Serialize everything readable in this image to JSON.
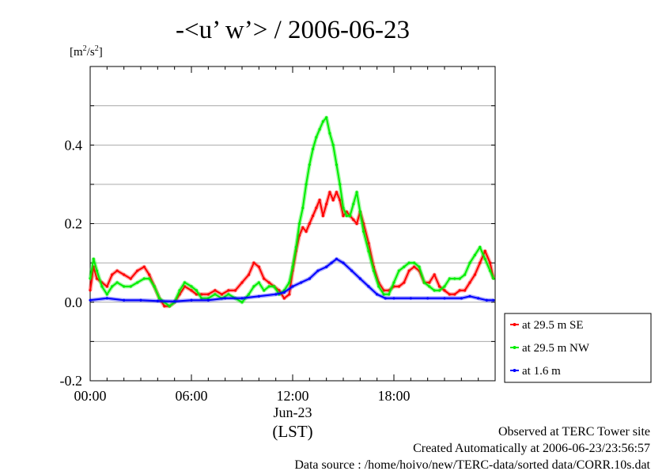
{
  "chart_data": {
    "type": "line",
    "title": "-<u’ w’> / 2006-06-23",
    "y_unit_parts": {
      "open": "[m",
      "sup1": "2",
      "mid": "/s",
      "sup2": "2",
      "close": "]"
    },
    "xlim": [
      0,
      24
    ],
    "ylim": [
      -0.2,
      0.6
    ],
    "x_ticks": [
      {
        "value": 0,
        "label": "00:00"
      },
      {
        "value": 6,
        "label": "06:00"
      },
      {
        "value": 12,
        "label": "12:00"
      },
      {
        "value": 18,
        "label": "18:00"
      }
    ],
    "x_date_label": "Jun-23",
    "x_axis_label": "(LST)",
    "y_ticks": [
      {
        "value": -0.2,
        "label": "-0.2"
      },
      {
        "value": 0.0,
        "label": "0.0"
      },
      {
        "value": 0.2,
        "label": "0.2"
      },
      {
        "value": 0.4,
        "label": "0.4"
      }
    ],
    "grid": true,
    "legend_position": "right-bottom-outside",
    "series": [
      {
        "name": "at 29.5 m SE",
        "color": "#ff0000",
        "x": [
          0,
          0.2,
          0.4,
          0.7,
          1.0,
          1.3,
          1.6,
          2.0,
          2.4,
          2.8,
          3.2,
          3.5,
          3.8,
          4.1,
          4.4,
          4.7,
          5.0,
          5.3,
          5.6,
          6.0,
          6.3,
          6.6,
          7.0,
          7.4,
          7.8,
          8.2,
          8.6,
          9.0,
          9.4,
          9.7,
          10.0,
          10.3,
          10.6,
          10.9,
          11.2,
          11.5,
          11.8,
          12.0,
          12.2,
          12.4,
          12.6,
          12.8,
          13.0,
          13.2,
          13.4,
          13.6,
          13.8,
          14.0,
          14.2,
          14.4,
          14.6,
          14.8,
          15.0,
          15.2,
          15.4,
          15.6,
          15.8,
          16.0,
          16.2,
          16.5,
          16.8,
          17.1,
          17.4,
          17.7,
          18.0,
          18.3,
          18.6,
          18.9,
          19.2,
          19.5,
          19.8,
          20.1,
          20.4,
          20.7,
          21.0,
          21.3,
          21.6,
          21.9,
          22.2,
          22.5,
          22.8,
          23.1,
          23.4,
          23.7,
          23.9
        ],
        "y": [
          0.03,
          0.09,
          0.06,
          0.05,
          0.04,
          0.07,
          0.08,
          0.07,
          0.06,
          0.08,
          0.09,
          0.07,
          0.04,
          0.01,
          -0.01,
          -0.01,
          0.0,
          0.02,
          0.04,
          0.03,
          0.02,
          0.02,
          0.02,
          0.03,
          0.02,
          0.03,
          0.03,
          0.05,
          0.07,
          0.1,
          0.09,
          0.06,
          0.05,
          0.04,
          0.03,
          0.01,
          0.02,
          0.08,
          0.13,
          0.17,
          0.19,
          0.18,
          0.2,
          0.22,
          0.24,
          0.26,
          0.22,
          0.25,
          0.28,
          0.26,
          0.28,
          0.26,
          0.22,
          0.23,
          0.22,
          0.21,
          0.2,
          0.23,
          0.2,
          0.15,
          0.09,
          0.05,
          0.03,
          0.03,
          0.04,
          0.04,
          0.05,
          0.08,
          0.09,
          0.08,
          0.05,
          0.05,
          0.07,
          0.04,
          0.03,
          0.02,
          0.02,
          0.03,
          0.03,
          0.05,
          0.07,
          0.1,
          0.13,
          0.1,
          0.06
        ]
      },
      {
        "name": "at 29.5 m NW",
        "color": "#00ee00",
        "x": [
          0,
          0.2,
          0.4,
          0.7,
          1.0,
          1.3,
          1.6,
          2.0,
          2.4,
          2.8,
          3.2,
          3.5,
          3.8,
          4.1,
          4.4,
          4.7,
          5.0,
          5.3,
          5.6,
          6.0,
          6.3,
          6.6,
          7.0,
          7.4,
          7.8,
          8.2,
          8.6,
          9.0,
          9.4,
          9.7,
          10.0,
          10.3,
          10.6,
          10.9,
          11.2,
          11.5,
          11.8,
          12.0,
          12.2,
          12.4,
          12.6,
          12.8,
          13.0,
          13.2,
          13.4,
          13.6,
          13.8,
          14.0,
          14.2,
          14.4,
          14.6,
          14.8,
          15.0,
          15.2,
          15.4,
          15.6,
          15.8,
          16.0,
          16.2,
          16.5,
          16.8,
          17.1,
          17.4,
          17.7,
          18.0,
          18.3,
          18.6,
          18.9,
          19.2,
          19.5,
          19.8,
          20.1,
          20.4,
          20.7,
          21.0,
          21.3,
          21.6,
          21.9,
          22.2,
          22.5,
          22.8,
          23.1,
          23.4,
          23.7,
          23.9
        ],
        "y": [
          0.06,
          0.11,
          0.08,
          0.04,
          0.02,
          0.04,
          0.05,
          0.04,
          0.04,
          0.05,
          0.06,
          0.06,
          0.04,
          0.01,
          0.0,
          -0.01,
          0.0,
          0.03,
          0.05,
          0.04,
          0.03,
          0.01,
          0.01,
          0.02,
          0.01,
          0.02,
          0.01,
          0.0,
          0.02,
          0.04,
          0.05,
          0.03,
          0.04,
          0.04,
          0.02,
          0.03,
          0.05,
          0.09,
          0.14,
          0.2,
          0.24,
          0.3,
          0.35,
          0.39,
          0.42,
          0.44,
          0.46,
          0.47,
          0.43,
          0.4,
          0.35,
          0.3,
          0.24,
          0.22,
          0.22,
          0.25,
          0.28,
          0.23,
          0.18,
          0.13,
          0.08,
          0.04,
          0.02,
          0.02,
          0.05,
          0.08,
          0.09,
          0.1,
          0.1,
          0.09,
          0.05,
          0.04,
          0.03,
          0.03,
          0.04,
          0.06,
          0.06,
          0.06,
          0.07,
          0.1,
          0.12,
          0.14,
          0.11,
          0.08,
          0.06
        ]
      },
      {
        "name": "at 1.6 m",
        "color": "#0000ff",
        "x": [
          0,
          1,
          2,
          3,
          4,
          5,
          6,
          7,
          8,
          9,
          10,
          11,
          11.5,
          12,
          12.5,
          13,
          13.5,
          14,
          14.3,
          14.6,
          15,
          15.5,
          16,
          16.5,
          17,
          17.5,
          18,
          19,
          20,
          21,
          22,
          22.5,
          23,
          23.5,
          23.9
        ],
        "y": [
          0.005,
          0.01,
          0.005,
          0.005,
          0.003,
          0.002,
          0.005,
          0.005,
          0.01,
          0.01,
          0.015,
          0.02,
          0.025,
          0.04,
          0.05,
          0.06,
          0.08,
          0.09,
          0.1,
          0.11,
          0.1,
          0.08,
          0.06,
          0.04,
          0.02,
          0.01,
          0.01,
          0.01,
          0.01,
          0.01,
          0.01,
          0.015,
          0.01,
          0.005,
          0.005
        ]
      }
    ]
  },
  "footer": {
    "line1": "Observed at TERC Tower site",
    "line2": "Created Automatically at 2006-06-23/23:56:57",
    "line3": "Data source : /home/hoivo/new/TERC-data/sorted  data/CORR.10s.dat"
  }
}
